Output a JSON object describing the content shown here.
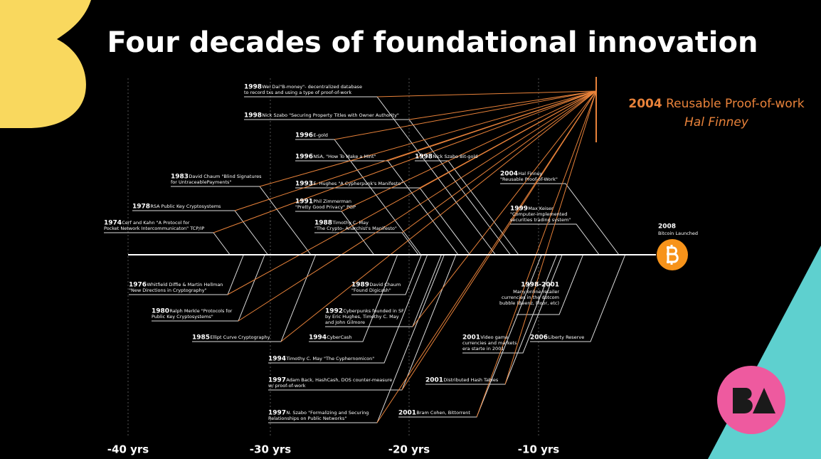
{
  "title": "Four decades of foundational innovation",
  "highlight": {
    "year": "2004",
    "text": "Reusable Proof-of-work",
    "person": "Hal Finney"
  },
  "end_node": {
    "year": "2008",
    "text": "Bitcoin Launched"
  },
  "axis_labels": [
    "-40 yrs",
    "-30 yrs",
    "-20 yrs",
    "-10 yrs"
  ],
  "events": [
    {
      "year": "1998",
      "lines": [
        "Wei Dai\"B-money\"- decentralized database",
        "to record txs and using a type of proof-of-work"
      ]
    },
    {
      "year": "1998",
      "lines": [
        "Nick Szabo \"Securing Property Titles with Owner Authority\""
      ]
    },
    {
      "year": "1996",
      "lines": [
        "E-gold"
      ]
    },
    {
      "year": "1996",
      "lines": [
        "NSA, \"How To Make a Mint\""
      ]
    },
    {
      "year": "1998",
      "lines": [
        "Nick Szabo Bit-gold"
      ]
    },
    {
      "year": "1983",
      "lines": [
        "David Chaum \"Blind Signatures",
        "for UntraceablePayments\""
      ]
    },
    {
      "year": "1993",
      "lines": [
        "E. Hughes \"A Cypherpunk's Manifesto\""
      ]
    },
    {
      "year": "2004",
      "lines": [
        "Hal Finney",
        "\"Reusable Proof-of-Work\""
      ]
    },
    {
      "year": "1978",
      "lines": [
        "RSA Public Key Cryptosystems"
      ]
    },
    {
      "year": "1991",
      "lines": [
        "Phil Zimmerman",
        "\"Pretty Good Privacy\" PGP"
      ]
    },
    {
      "year": "1999",
      "lines": [
        "Max Keiser",
        "\"Computer-implemented",
        "securities trading system\""
      ]
    },
    {
      "year": "1974",
      "lines": [
        "Cerf and Kahn \"A Protocol for",
        "Pocket Network Intercommunicaton\" TCP/IP"
      ]
    },
    {
      "year": "1988",
      "lines": [
        "Timothy C. May",
        "\"The Crypto- Anarchist's Manifesto\""
      ]
    },
    {
      "year": "1976",
      "lines": [
        "Whitfield Diffie & Martin Hellman",
        "\"New Directions in Cryptography\""
      ]
    },
    {
      "year": "1980",
      "lines": [
        "Ralph Merkle \"Protocols for",
        "Public Key Cryptosystems\""
      ]
    },
    {
      "year": "1985",
      "lines": [
        "Ellipt Curve Cryptography"
      ]
    },
    {
      "year": "1989",
      "lines": [
        "David Chaum",
        "\"Found Digicash\""
      ]
    },
    {
      "year": "1992",
      "lines": [
        "Cyberpunks founded in SF",
        "by Eric Hughes, Timothy C. May",
        "and John Gilmore"
      ]
    },
    {
      "year": "1994",
      "lines": [
        "CyberCash"
      ]
    },
    {
      "year": "1994",
      "lines": [
        "Timothy C. May \"The Cyphernomicon\""
      ]
    },
    {
      "year": "1997",
      "lines": [
        "Adam Back, HashCash, DOS counter-measure",
        "w/ proof-of-work"
      ]
    },
    {
      "year": "1997",
      "lines": [
        "N. Szabo \"Formalizing and Securing",
        "Relationships on Public Networks\""
      ]
    },
    {
      "year": "1998-2001",
      "lines": [
        "Many online retailer",
        "currencies in the dotcom",
        "bubble (Beenz, Floor, etc)"
      ]
    },
    {
      "year": "2001",
      "lines": [
        "Video game",
        "currencies and markets",
        "era starte in 2001"
      ]
    },
    {
      "year": "2006",
      "lines": [
        "Liberty Reserve"
      ]
    },
    {
      "year": "2001",
      "lines": [
        "Distributed Hash Tables"
      ]
    },
    {
      "year": "2001",
      "lines": [
        "Bram Cohen, Bittorrent"
      ]
    }
  ]
}
